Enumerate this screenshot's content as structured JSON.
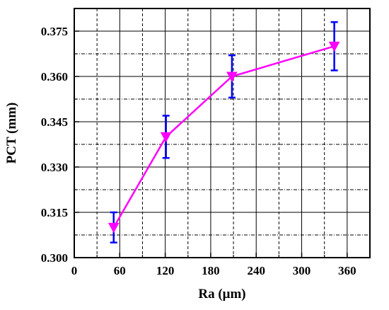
{
  "chart_data": {
    "type": "line",
    "xlabel": "Ra (μm)",
    "ylabel": "PCT (mm)",
    "xlim": [
      0,
      390
    ],
    "ylim": [
      0.3,
      0.3825
    ],
    "x_ticks": [
      "0",
      "60",
      "120",
      "180",
      "240",
      "300",
      "360"
    ],
    "y_ticks": [
      "0.300",
      "0.315",
      "0.330",
      "0.345",
      "0.360",
      "0.375"
    ],
    "grid": true,
    "series": [
      {
        "x": [
          52,
          121,
          208,
          343
        ],
        "y": [
          0.31,
          0.34,
          0.36,
          0.37
        ],
        "error": [
          0.005,
          0.007,
          0.007,
          0.008
        ],
        "line_color": "#ff00ff",
        "marker": "triangle-down",
        "marker_color": "#ff00ff",
        "error_color": "#0000ff"
      }
    ]
  }
}
